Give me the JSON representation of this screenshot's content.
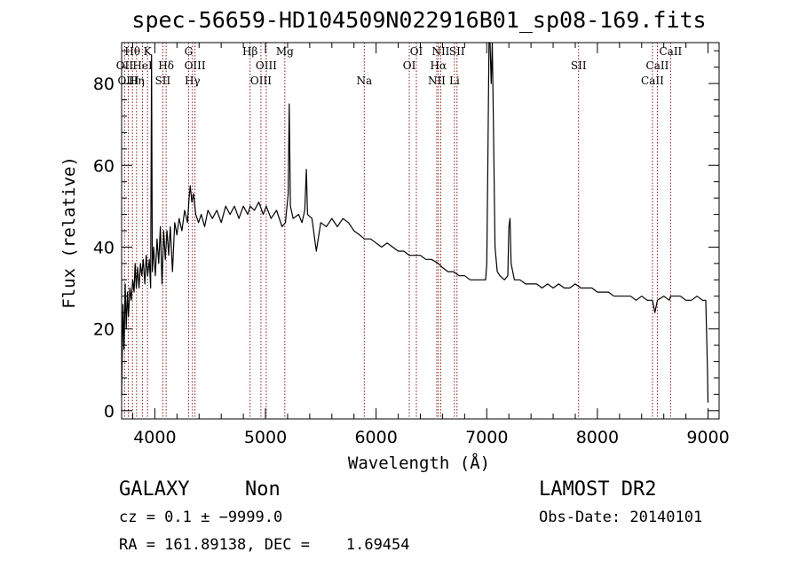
{
  "chart_data": {
    "type": "line",
    "title": "spec-56659-HD104509N022916B01_sp08-169.fits",
    "xlabel": "Wavelength (Å)",
    "ylabel": "Flux (relative)",
    "xlim": [
      3700,
      9100
    ],
    "ylim": [
      -2,
      90
    ],
    "xticks": [
      4000,
      5000,
      6000,
      7000,
      8000,
      9000
    ],
    "yticks": [
      0,
      20,
      40,
      60,
      80
    ],
    "grid": false,
    "series": [
      {
        "values": [
          [
            3700,
            4
          ],
          [
            3712,
            26
          ],
          [
            3722,
            15
          ],
          [
            3732,
            31
          ],
          [
            3742,
            20
          ],
          [
            3752,
            29
          ],
          [
            3762,
            23
          ],
          [
            3775,
            30
          ],
          [
            3787,
            27
          ],
          [
            3800,
            32
          ],
          [
            3812,
            29
          ],
          [
            3822,
            36
          ],
          [
            3832,
            30
          ],
          [
            3845,
            35
          ],
          [
            3857,
            30
          ],
          [
            3870,
            36
          ],
          [
            3882,
            33
          ],
          [
            3895,
            37
          ],
          [
            3910,
            31
          ],
          [
            3922,
            38
          ],
          [
            3935,
            33
          ],
          [
            3950,
            37
          ],
          [
            3962,
            30
          ],
          [
            3970,
            87
          ],
          [
            3978,
            34
          ],
          [
            3990,
            40
          ],
          [
            4005,
            33
          ],
          [
            4020,
            42
          ],
          [
            4035,
            36
          ],
          [
            4050,
            45
          ],
          [
            4065,
            31
          ],
          [
            4080,
            44
          ],
          [
            4095,
            37
          ],
          [
            4110,
            44
          ],
          [
            4125,
            38
          ],
          [
            4140,
            45
          ],
          [
            4160,
            34
          ],
          [
            4180,
            46
          ],
          [
            4200,
            43
          ],
          [
            4220,
            47
          ],
          [
            4245,
            44
          ],
          [
            4270,
            49
          ],
          [
            4295,
            46
          ],
          [
            4310,
            52
          ],
          [
            4320,
            55
          ],
          [
            4335,
            51
          ],
          [
            4350,
            53
          ],
          [
            4370,
            48
          ],
          [
            4395,
            46
          ],
          [
            4420,
            48
          ],
          [
            4450,
            45
          ],
          [
            4480,
            49
          ],
          [
            4520,
            47
          ],
          [
            4560,
            49
          ],
          [
            4600,
            46
          ],
          [
            4640,
            50
          ],
          [
            4680,
            48
          ],
          [
            4720,
            50
          ],
          [
            4760,
            47
          ],
          [
            4800,
            50
          ],
          [
            4840,
            48
          ],
          [
            4862,
            50
          ],
          [
            4900,
            49
          ],
          [
            4940,
            51
          ],
          [
            4980,
            48
          ],
          [
            5007,
            50
          ],
          [
            5050,
            47
          ],
          [
            5100,
            49
          ],
          [
            5150,
            45
          ],
          [
            5180,
            46
          ],
          [
            5205,
            53
          ],
          [
            5215,
            75
          ],
          [
            5225,
            50
          ],
          [
            5250,
            47
          ],
          [
            5300,
            48
          ],
          [
            5330,
            46
          ],
          [
            5355,
            49
          ],
          [
            5370,
            59
          ],
          [
            5380,
            48
          ],
          [
            5420,
            47
          ],
          [
            5460,
            39
          ],
          [
            5500,
            46
          ],
          [
            5550,
            45
          ],
          [
            5600,
            47
          ],
          [
            5650,
            45
          ],
          [
            5700,
            47
          ],
          [
            5750,
            46
          ],
          [
            5800,
            44
          ],
          [
            5850,
            43
          ],
          [
            5893,
            42
          ],
          [
            5950,
            42
          ],
          [
            6000,
            41
          ],
          [
            6050,
            40
          ],
          [
            6100,
            41
          ],
          [
            6150,
            40
          ],
          [
            6200,
            39
          ],
          [
            6250,
            39
          ],
          [
            6300,
            38
          ],
          [
            6350,
            38
          ],
          [
            6400,
            38
          ],
          [
            6450,
            37
          ],
          [
            6500,
            37
          ],
          [
            6563,
            36
          ],
          [
            6600,
            35
          ],
          [
            6650,
            34
          ],
          [
            6700,
            34
          ],
          [
            6750,
            33
          ],
          [
            6800,
            33
          ],
          [
            6850,
            32
          ],
          [
            6900,
            32
          ],
          [
            6950,
            32
          ],
          [
            6990,
            32
          ],
          [
            7000,
            36
          ],
          [
            7010,
            60
          ],
          [
            7020,
            90
          ],
          [
            7030,
            92
          ],
          [
            7040,
            80
          ],
          [
            7050,
            90
          ],
          [
            7060,
            70
          ],
          [
            7075,
            40
          ],
          [
            7095,
            34
          ],
          [
            7120,
            33
          ],
          [
            7160,
            32
          ],
          [
            7190,
            33
          ],
          [
            7200,
            45
          ],
          [
            7210,
            47
          ],
          [
            7220,
            36
          ],
          [
            7250,
            32
          ],
          [
            7300,
            32
          ],
          [
            7350,
            31
          ],
          [
            7400,
            31
          ],
          [
            7450,
            31
          ],
          [
            7500,
            30
          ],
          [
            7550,
            31
          ],
          [
            7600,
            30
          ],
          [
            7650,
            31
          ],
          [
            7700,
            30
          ],
          [
            7750,
            30
          ],
          [
            7800,
            31
          ],
          [
            7850,
            30
          ],
          [
            7900,
            30
          ],
          [
            7950,
            30
          ],
          [
            8000,
            29
          ],
          [
            8050,
            29
          ],
          [
            8100,
            29
          ],
          [
            8150,
            28
          ],
          [
            8200,
            28
          ],
          [
            8250,
            28
          ],
          [
            8300,
            28
          ],
          [
            8350,
            27
          ],
          [
            8400,
            28
          ],
          [
            8450,
            27
          ],
          [
            8498,
            27
          ],
          [
            8520,
            24
          ],
          [
            8542,
            27
          ],
          [
            8600,
            28
          ],
          [
            8650,
            27
          ],
          [
            8662,
            28
          ],
          [
            8700,
            28
          ],
          [
            8750,
            28
          ],
          [
            8800,
            27
          ],
          [
            8850,
            27
          ],
          [
            8900,
            28
          ],
          [
            8950,
            27
          ],
          [
            8980,
            27
          ],
          [
            8995,
            10
          ],
          [
            9000,
            2
          ]
        ]
      }
    ],
    "line_markers": [
      {
        "label": "OII",
        "wavelength": 3727,
        "row": 2
      },
      {
        "label": "Hθ",
        "wavelength": 3798,
        "row": 1
      },
      {
        "label": "OIII",
        "wavelength": 3760,
        "row": 3
      },
      {
        "label": "HeI",
        "wavelength": 3889,
        "row": 2
      },
      {
        "label": "Hη",
        "wavelength": 3835,
        "row": 3
      },
      {
        "label": "K",
        "wavelength": 3934,
        "row": 1
      },
      {
        "label": "Hδ",
        "wavelength": 4102,
        "row": 2
      },
      {
        "label": "SII",
        "wavelength": 4072,
        "row": 3
      },
      {
        "label": "G",
        "wavelength": 4305,
        "row": 1
      },
      {
        "label": "OIII",
        "wavelength": 4363,
        "row": 2
      },
      {
        "label": "Hγ",
        "wavelength": 4340,
        "row": 3
      },
      {
        "label": "Hβ",
        "wavelength": 4861,
        "row": 1
      },
      {
        "label": "OIII",
        "wavelength": 5007,
        "row": 2
      },
      {
        "label": "OIII",
        "wavelength": 4959,
        "row": 3
      },
      {
        "label": "Mg",
        "wavelength": 5175,
        "row": 1
      },
      {
        "label": "Na",
        "wavelength": 5893,
        "row": 3
      },
      {
        "label": "OI",
        "wavelength": 6364,
        "row": 1
      },
      {
        "label": "OI",
        "wavelength": 6300,
        "row": 2
      },
      {
        "label": "NII",
        "wavelength": 6584,
        "row": 1
      },
      {
        "label": "Hα",
        "wavelength": 6563,
        "row": 2
      },
      {
        "label": "NII",
        "wavelength": 6548,
        "row": 3
      },
      {
        "label": "SII",
        "wavelength": 6731,
        "row": 1
      },
      {
        "label": "Li",
        "wavelength": 6708,
        "row": 3
      },
      {
        "label": "SII",
        "wavelength": 7830,
        "row": 2
      },
      {
        "label": "CaII",
        "wavelength": 8662,
        "row": 1
      },
      {
        "label": "CaII",
        "wavelength": 8542,
        "row": 2
      },
      {
        "label": "CaII",
        "wavelength": 8498,
        "row": 3
      }
    ]
  },
  "info": {
    "class": "GALAXY",
    "subclass": "Non",
    "survey": "LAMOST DR2",
    "cz": "cz = 0.1 ± −9999.0",
    "obs_date": "Obs-Date: 20140101",
    "coords": "RA = 161.89138, DEC =    1.69454"
  },
  "colors": {
    "marker_line": "#8b1a1a",
    "spectrum": "#000000"
  }
}
